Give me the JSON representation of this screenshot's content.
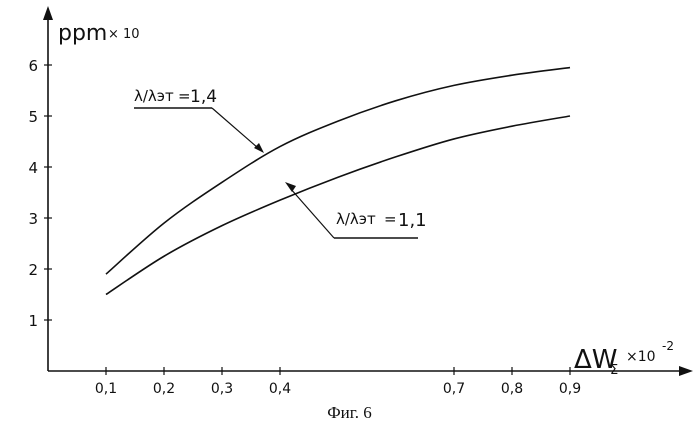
{
  "chart_data": {
    "type": "line",
    "ylabel": "ppm",
    "ylabel_multiplier": "× 10",
    "xlabel_symbol": "ΔW",
    "xlabel_subscript": "Σ",
    "xlabel_multiplier": "×10",
    "xlabel_exponent": "-2",
    "x_ticks": [
      "0,1",
      "0,2",
      "0,3",
      "0,4",
      "0,7",
      "0,8",
      "0,9"
    ],
    "x_tick_values": [
      0.1,
      0.2,
      0.3,
      0.4,
      0.7,
      0.8,
      0.9
    ],
    "y_ticks": [
      "1",
      "2",
      "3",
      "4",
      "5",
      "6"
    ],
    "y_tick_values": [
      1,
      2,
      3,
      4,
      5,
      6
    ],
    "xlim": [
      0,
      1.0
    ],
    "ylim": [
      0,
      6.8
    ],
    "grid": false,
    "series": [
      {
        "label_prefix": "λ/λэт",
        "label_value": "1,4",
        "x": [
          0.1,
          0.2,
          0.3,
          0.4,
          0.5,
          0.6,
          0.7,
          0.8,
          0.9
        ],
        "y": [
          1.9,
          2.9,
          3.7,
          4.4,
          4.9,
          5.3,
          5.6,
          5.8,
          5.95
        ]
      },
      {
        "label_prefix": "λ/λэт",
        "label_value": "1,1",
        "x": [
          0.1,
          0.2,
          0.3,
          0.4,
          0.5,
          0.6,
          0.7,
          0.8,
          0.9
        ],
        "y": [
          1.5,
          2.25,
          2.85,
          3.35,
          3.8,
          4.2,
          4.55,
          4.8,
          5.0
        ]
      }
    ],
    "caption": "Фиг. 6"
  }
}
